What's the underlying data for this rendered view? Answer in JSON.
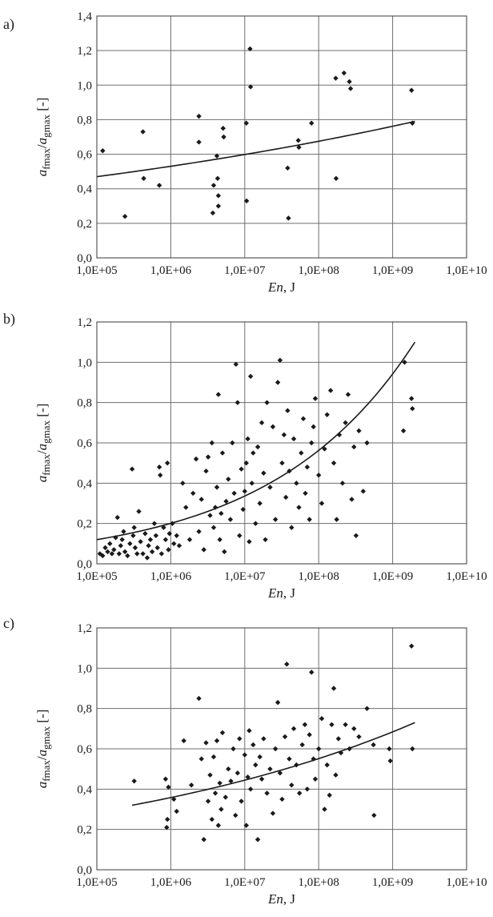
{
  "figure": {
    "panels": [
      {
        "letter": "a)",
        "ylabel_main": "a",
        "ylabel_sub1": "fmax",
        "ylabel_sep": "/",
        "ylabel_sub2": "gmax",
        "ylabel_unit": " [-]",
        "xlabel_var": "En",
        "xlabel_unit": ", J"
      },
      {
        "letter": "b)",
        "ylabel_main": "a",
        "ylabel_sub1": "fmax",
        "ylabel_sep": "/",
        "ylabel_sub2": "gmax",
        "ylabel_unit": " [-]",
        "xlabel_var": "En",
        "xlabel_unit": ", J"
      },
      {
        "letter": "c)",
        "ylabel_main": "a",
        "ylabel_sub1": "fmax",
        "ylabel_sep": "/",
        "ylabel_sub2": "gmax",
        "ylabel_unit": " [-]",
        "xlabel_var": "En",
        "xlabel_unit": ", J"
      }
    ]
  },
  "chart_data": [
    {
      "type": "scatter",
      "title": "",
      "xlabel": "En, J",
      "ylabel": "afmax/agmax [-]",
      "xscale": "log",
      "xlim": [
        100000,
        10000000000
      ],
      "ylim": [
        0,
        1.4
      ],
      "xticks": [
        "1,0E+05",
        "1,0E+06",
        "1,0E+07",
        "1,0E+08",
        "1,0E+09",
        "1,0E+10"
      ],
      "yticks": [
        "0,0",
        "0,2",
        "0,4",
        "0,6",
        "0,8",
        "1,0",
        "1,2",
        "1,4"
      ],
      "grid": true,
      "marker": "diamond",
      "points": [
        [
          120000.0,
          0.62
        ],
        [
          240000.0,
          0.24
        ],
        [
          420000.0,
          0.73
        ],
        [
          430000.0,
          0.46
        ],
        [
          700000.0,
          0.42
        ],
        [
          2400000.0,
          0.82
        ],
        [
          2400000.0,
          0.67
        ],
        [
          3700000.0,
          0.26
        ],
        [
          3800000.0,
          0.42
        ],
        [
          4200000.0,
          0.59
        ],
        [
          4300000.0,
          0.46
        ],
        [
          4400000.0,
          0.36
        ],
        [
          4400000.0,
          0.3
        ],
        [
          5100000.0,
          0.75
        ],
        [
          5200000.0,
          0.7
        ],
        [
          10500000.0,
          0.78
        ],
        [
          10600000.0,
          0.33
        ],
        [
          11800000.0,
          1.21
        ],
        [
          12000000.0,
          0.99
        ],
        [
          38000000.0,
          0.52
        ],
        [
          39000000.0,
          0.23
        ],
        [
          53000000.0,
          0.68
        ],
        [
          54000000.0,
          0.64
        ],
        [
          80000000.0,
          0.78
        ],
        [
          170000000.0,
          1.04
        ],
        [
          172000000.0,
          0.46
        ],
        [
          220000000.0,
          1.07
        ],
        [
          260000000.0,
          1.02
        ],
        [
          270000000.0,
          0.98
        ],
        [
          1800000000.0,
          0.97
        ],
        [
          1850000000.0,
          0.78
        ]
      ],
      "trend": {
        "x": [
          100000,
          2000000000
        ],
        "y": [
          0.47,
          0.79
        ]
      }
    },
    {
      "type": "scatter",
      "title": "",
      "xlabel": "En, J",
      "ylabel": "afmax/agmax [-]",
      "xscale": "log",
      "xlim": [
        100000,
        10000000000
      ],
      "ylim": [
        0,
        1.2
      ],
      "xticks": [
        "1,0E+05",
        "1,0E+06",
        "1,0E+07",
        "1,0E+08",
        "1,0E+09",
        "1,0E+10"
      ],
      "yticks": [
        "0,0",
        "0,2",
        "0,4",
        "0,6",
        "0,8",
        "1,0",
        "1,2"
      ],
      "grid": true,
      "marker": "diamond",
      "points": [
        [
          110000.0,
          0.05
        ],
        [
          120000.0,
          0.04
        ],
        [
          130000.0,
          0.08
        ],
        [
          140000.0,
          0.06
        ],
        [
          150000.0,
          0.1
        ],
        [
          160000.0,
          0.05
        ],
        [
          170000.0,
          0.07
        ],
        [
          180000.0,
          0.13
        ],
        [
          190000.0,
          0.23
        ],
        [
          200000.0,
          0.05
        ],
        [
          210000.0,
          0.09
        ],
        [
          220000.0,
          0.12
        ],
        [
          230000.0,
          0.16
        ],
        [
          240000.0,
          0.06
        ],
        [
          260000.0,
          0.04
        ],
        [
          280000.0,
          0.1
        ],
        [
          300000.0,
          0.47
        ],
        [
          310000.0,
          0.14
        ],
        [
          320000.0,
          0.18
        ],
        [
          330000.0,
          0.08
        ],
        [
          350000.0,
          0.05
        ],
        [
          370000.0,
          0.26
        ],
        [
          390000.0,
          0.11
        ],
        [
          420000.0,
          0.05
        ],
        [
          450000.0,
          0.15
        ],
        [
          480000.0,
          0.03
        ],
        [
          500000.0,
          0.09
        ],
        [
          530000.0,
          0.12
        ],
        [
          560000.0,
          0.06
        ],
        [
          600000.0,
          0.2
        ],
        [
          630000.0,
          0.14
        ],
        [
          660000.0,
          0.08
        ],
        [
          700000.0,
          0.48
        ],
        [
          720000.0,
          0.44
        ],
        [
          750000.0,
          0.05
        ],
        [
          800000.0,
          0.18
        ],
        [
          850000.0,
          0.12
        ],
        [
          900000.0,
          0.5
        ],
        [
          930000.0,
          0.07
        ],
        [
          960000.0,
          0.15
        ],
        [
          1050000.0,
          0.2
        ],
        [
          1100000.0,
          0.1
        ],
        [
          1200000.0,
          0.14
        ],
        [
          1300000.0,
          0.09
        ],
        [
          1450000.0,
          0.4
        ],
        [
          1600000.0,
          0.28
        ],
        [
          1800000.0,
          0.12
        ],
        [
          2000000.0,
          0.35
        ],
        [
          2200000.0,
          0.52
        ],
        [
          2400000.0,
          0.16
        ],
        [
          2600000.0,
          0.32
        ],
        [
          2800000.0,
          0.07
        ],
        [
          3000000.0,
          0.46
        ],
        [
          3200000.0,
          0.53
        ],
        [
          3400000.0,
          0.24
        ],
        [
          3600000.0,
          0.6
        ],
        [
          3800000.0,
          0.18
        ],
        [
          4000000.0,
          0.28
        ],
        [
          4200000.0,
          0.38
        ],
        [
          4400000.0,
          0.84
        ],
        [
          4600000.0,
          0.12
        ],
        [
          4800000.0,
          0.25
        ],
        [
          5000000.0,
          0.55
        ],
        [
          5300000.0,
          0.06
        ],
        [
          5600000.0,
          0.31
        ],
        [
          6000000.0,
          0.42
        ],
        [
          6400000.0,
          0.22
        ],
        [
          6800000.0,
          0.6
        ],
        [
          7200000.0,
          0.35
        ],
        [
          7600000.0,
          0.99
        ],
        [
          8000000.0,
          0.8
        ],
        [
          8500000.0,
          0.14
        ],
        [
          9000000.0,
          0.47
        ],
        [
          9500000.0,
          0.27
        ],
        [
          10000000.0,
          0.36
        ],
        [
          10500000.0,
          0.5
        ],
        [
          11000000.0,
          0.62
        ],
        [
          11500000.0,
          0.11
        ],
        [
          12000000.0,
          0.93
        ],
        [
          12500000.0,
          0.4
        ],
        [
          13000000.0,
          0.55
        ],
        [
          14000000.0,
          0.2
        ],
        [
          15000000.0,
          0.58
        ],
        [
          16000000.0,
          0.3
        ],
        [
          17000000.0,
          0.7
        ],
        [
          18000000.0,
          0.45
        ],
        [
          19000000.0,
          0.12
        ],
        [
          20000000.0,
          0.8
        ],
        [
          22000000.0,
          0.38
        ],
        [
          24000000.0,
          0.68
        ],
        [
          26000000.0,
          0.22
        ],
        [
          28000000.0,
          0.9
        ],
        [
          30000000.0,
          1.01
        ],
        [
          32000000.0,
          0.5
        ],
        [
          34000000.0,
          0.64
        ],
        [
          36000000.0,
          0.33
        ],
        [
          38000000.0,
          0.76
        ],
        [
          40000000.0,
          0.46
        ],
        [
          43000000.0,
          0.18
        ],
        [
          46000000.0,
          0.62
        ],
        [
          50000000.0,
          0.4
        ],
        [
          54000000.0,
          0.28
        ],
        [
          58000000.0,
          0.55
        ],
        [
          62000000.0,
          0.72
        ],
        [
          66000000.0,
          0.35
        ],
        [
          70000000.0,
          0.48
        ],
        [
          75000000.0,
          0.22
        ],
        [
          80000000.0,
          0.6
        ],
        [
          85000000.0,
          0.68
        ],
        [
          90000000.0,
          0.82
        ],
        [
          100000000.0,
          0.44
        ],
        [
          110000000.0,
          0.3
        ],
        [
          120000000.0,
          0.57
        ],
        [
          130000000.0,
          0.74
        ],
        [
          145000000.0,
          0.86
        ],
        [
          160000000.0,
          0.5
        ],
        [
          175000000.0,
          0.22
        ],
        [
          190000000.0,
          0.64
        ],
        [
          210000000.0,
          0.4
        ],
        [
          230000000.0,
          0.7
        ],
        [
          250000000.0,
          0.84
        ],
        [
          280000000.0,
          0.32
        ],
        [
          300000000.0,
          0.58
        ],
        [
          320000000.0,
          0.14
        ],
        [
          350000000.0,
          0.66
        ],
        [
          400000000.0,
          0.36
        ],
        [
          450000000.0,
          0.6
        ],
        [
          1400000000.0,
          0.66
        ],
        [
          1450000000.0,
          1.0
        ],
        [
          1800000000.0,
          0.82
        ],
        [
          1850000000.0,
          0.77
        ]
      ],
      "trend": {
        "x": [
          100000,
          2000000000
        ],
        "y": [
          0.12,
          1.1
        ]
      }
    },
    {
      "type": "scatter",
      "title": "",
      "xlabel": "En, J",
      "ylabel": "afmax/agmax [-]",
      "xscale": "log",
      "xlim": [
        100000,
        10000000000
      ],
      "ylim": [
        0,
        1.2
      ],
      "xticks": [
        "1,0E+05",
        "1,0E+06",
        "1,0E+07",
        "1,0E+08",
        "1,0E+09",
        "1,0E+10"
      ],
      "yticks": [
        "0,0",
        "0,2",
        "0,4",
        "0,6",
        "0,8",
        "1,0",
        "1,2"
      ],
      "grid": true,
      "marker": "diamond",
      "points": [
        [
          320000.0,
          0.44
        ],
        [
          850000.0,
          0.45
        ],
        [
          880000.0,
          0.21
        ],
        [
          900000.0,
          0.25
        ],
        [
          930000.0,
          0.41
        ],
        [
          1100000.0,
          0.35
        ],
        [
          1200000.0,
          0.29
        ],
        [
          1500000.0,
          0.64
        ],
        [
          1900000.0,
          0.42
        ],
        [
          2400000.0,
          0.85
        ],
        [
          2600000.0,
          0.55
        ],
        [
          2800000.0,
          0.15
        ],
        [
          3000000.0,
          0.63
        ],
        [
          3200000.0,
          0.34
        ],
        [
          3400000.0,
          0.47
        ],
        [
          3600000.0,
          0.25
        ],
        [
          3800000.0,
          0.56
        ],
        [
          4000000.0,
          0.38
        ],
        [
          4200000.0,
          0.64
        ],
        [
          4400000.0,
          0.22
        ],
        [
          4600000.0,
          0.43
        ],
        [
          4800000.0,
          0.3
        ],
        [
          5000000.0,
          0.68
        ],
        [
          5500000.0,
          0.36
        ],
        [
          6000000.0,
          0.5
        ],
        [
          6500000.0,
          0.44
        ],
        [
          7000000.0,
          0.6
        ],
        [
          7500000.0,
          0.27
        ],
        [
          8000000.0,
          0.48
        ],
        [
          8500000.0,
          0.65
        ],
        [
          9000000.0,
          0.34
        ],
        [
          10000000.0,
          0.57
        ],
        [
          10500000.0,
          0.22
        ],
        [
          11000000.0,
          0.46
        ],
        [
          11500000.0,
          0.69
        ],
        [
          12000000.0,
          0.4
        ],
        [
          13000000.0,
          0.62
        ],
        [
          14000000.0,
          0.52
        ],
        [
          15000000.0,
          0.15
        ],
        [
          16000000.0,
          0.56
        ],
        [
          17000000.0,
          0.45
        ],
        [
          18000000.0,
          0.65
        ],
        [
          20000000.0,
          0.38
        ],
        [
          22000000.0,
          0.5
        ],
        [
          24000000.0,
          0.28
        ],
        [
          26000000.0,
          0.6
        ],
        [
          28000000.0,
          0.83
        ],
        [
          30000000.0,
          0.48
        ],
        [
          32000000.0,
          0.35
        ],
        [
          35000000.0,
          0.66
        ],
        [
          37000000.0,
          1.02
        ],
        [
          40000000.0,
          0.55
        ],
        [
          43000000.0,
          0.42
        ],
        [
          46000000.0,
          0.7
        ],
        [
          50000000.0,
          0.52
        ],
        [
          55000000.0,
          0.38
        ],
        [
          60000000.0,
          0.62
        ],
        [
          65000000.0,
          0.72
        ],
        [
          70000000.0,
          0.4
        ],
        [
          75000000.0,
          0.67
        ],
        [
          80000000.0,
          0.98
        ],
        [
          85000000.0,
          0.55
        ],
        [
          90000000.0,
          0.45
        ],
        [
          100000000.0,
          0.6
        ],
        [
          110000000.0,
          0.75
        ],
        [
          120000000.0,
          0.3
        ],
        [
          130000000.0,
          0.52
        ],
        [
          140000000.0,
          0.37
        ],
        [
          150000000.0,
          0.72
        ],
        [
          160000000.0,
          0.9
        ],
        [
          170000000.0,
          0.47
        ],
        [
          185000000.0,
          0.65
        ],
        [
          200000000.0,
          0.58
        ],
        [
          230000000.0,
          0.72
        ],
        [
          260000000.0,
          0.6
        ],
        [
          300000000.0,
          0.7
        ],
        [
          350000000.0,
          0.66
        ],
        [
          450000000.0,
          0.8
        ],
        [
          550000000.0,
          0.62
        ],
        [
          560000000.0,
          0.27
        ],
        [
          900000000.0,
          0.6
        ],
        [
          930000000.0,
          0.54
        ],
        [
          1800000000.0,
          1.11
        ],
        [
          1850000000.0,
          0.6
        ]
      ],
      "trend": {
        "x": [
          300000,
          2000000000
        ],
        "y": [
          0.32,
          0.73
        ]
      }
    }
  ]
}
